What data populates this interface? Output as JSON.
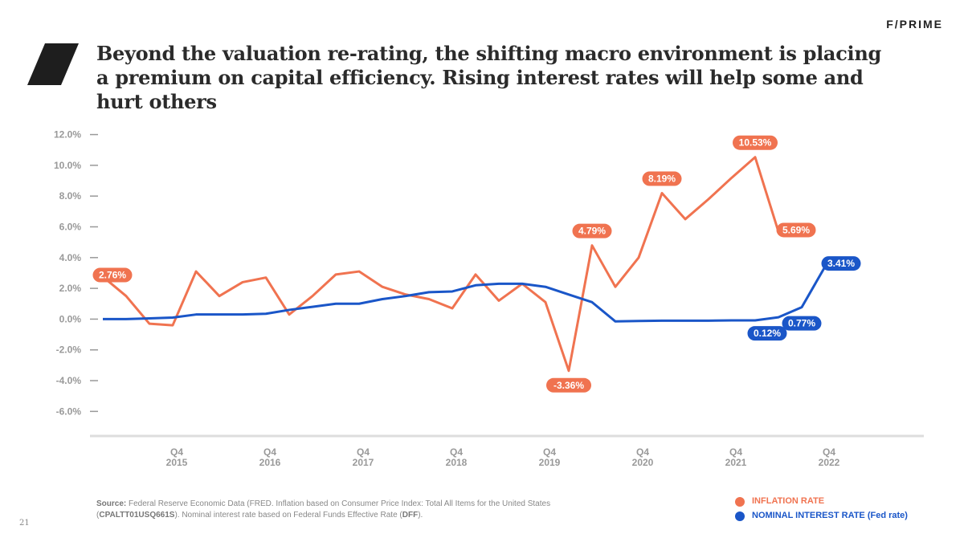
{
  "title": "Beyond the valuation re-rating, the shifting macro environment is placing a premium on capital efficiency. Rising interest rates will help some and hurt others",
  "logo": "F/PRIME",
  "page_number": "21",
  "source": [
    "Source:",
    " Federal Reserve Economic Data (FRED. Inflation based on Consumer Price Index: Total All Items for the United States (",
    "CPALTT01USQ661S",
    "). Nominal interest rate based on Federal Funds Effective Rate (",
    "DFF",
    ")."
  ],
  "chart_data": {
    "type": "line",
    "categories": [
      null,
      null,
      null,
      "Q4\n2015",
      null,
      null,
      null,
      "Q4\n2016",
      null,
      null,
      null,
      "Q4\n2017",
      null,
      null,
      null,
      "Q4\n2018",
      null,
      null,
      null,
      "Q4\n2019",
      null,
      null,
      null,
      "Q4\n2020",
      null,
      null,
      null,
      "Q4\n2021",
      null,
      null,
      null,
      "Q4\n2022"
    ],
    "series": [
      {
        "name": "INFLATION RATE",
        "color": "#f07350",
        "values": [
          2.76,
          1.5,
          -0.3,
          -0.4,
          3.1,
          1.5,
          2.4,
          2.7,
          0.3,
          1.5,
          2.9,
          3.1,
          2.1,
          1.6,
          1.3,
          0.7,
          2.9,
          1.2,
          2.3,
          1.1,
          -3.36,
          4.79,
          2.1,
          4.0,
          8.19,
          6.5,
          7.8,
          9.2,
          10.53,
          5.69,
          null,
          null
        ],
        "value_labels": [
          "2.76%",
          null,
          null,
          null,
          null,
          null,
          null,
          null,
          null,
          null,
          null,
          null,
          null,
          null,
          null,
          null,
          null,
          null,
          null,
          null,
          "-3.36%",
          "4.79%",
          null,
          null,
          "8.19%",
          null,
          null,
          null,
          "10.53%",
          "5.69%",
          null,
          null
        ]
      },
      {
        "name": "NOMINAL INTEREST RATE (Fed rate)",
        "color": "#1a56c8",
        "values": [
          0.0,
          0.0,
          0.05,
          0.1,
          0.3,
          0.3,
          0.3,
          0.35,
          0.6,
          0.8,
          1.0,
          1.0,
          1.3,
          1.5,
          1.75,
          1.8,
          2.2,
          2.3,
          2.3,
          2.1,
          1.6,
          1.1,
          -0.15,
          -0.12,
          -0.1,
          -0.1,
          -0.1,
          -0.08,
          -0.08,
          0.12,
          0.77,
          3.41
        ],
        "value_labels": [
          null,
          null,
          null,
          null,
          null,
          null,
          null,
          null,
          null,
          null,
          null,
          null,
          null,
          null,
          null,
          null,
          null,
          null,
          null,
          null,
          null,
          null,
          null,
          null,
          null,
          null,
          null,
          null,
          null,
          "0.12%",
          "0.77%",
          "3.41%"
        ]
      }
    ],
    "ylim": [
      -7.6,
      12.5
    ],
    "yticks": [
      {
        "value": -6,
        "label": "-6.0%"
      },
      {
        "value": -4,
        "label": "-4.0%"
      },
      {
        "value": -2,
        "label": "-2.0%"
      },
      {
        "value": 0,
        "label": "0.0%"
      },
      {
        "value": 2,
        "label": "2.0%"
      },
      {
        "value": 4,
        "label": "4.0%"
      },
      {
        "value": 6,
        "label": "6.0%"
      },
      {
        "value": 8,
        "label": "8.0%"
      },
      {
        "value": 10,
        "label": "10.0%"
      },
      {
        "value": 12,
        "label": "12.0%"
      }
    ],
    "legend": "bottom-right"
  }
}
